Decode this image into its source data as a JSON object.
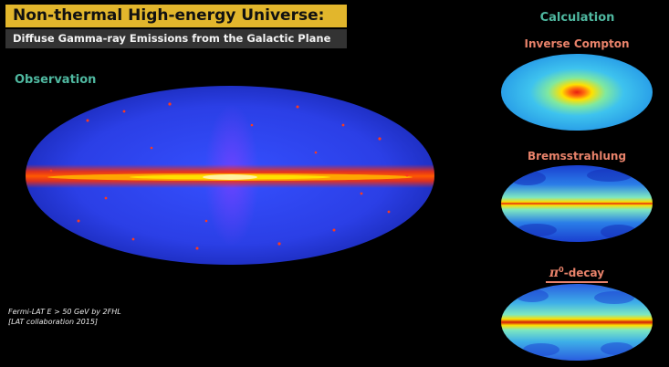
{
  "header": {
    "title": "Non-thermal High-energy Universe:",
    "subtitle": "Diffuse Gamma-ray Emissions from the Galactic Plane"
  },
  "observation": {
    "label": "Observation",
    "credit_line1": "Fermi-LAT E > 50 GeV by 2FHL",
    "credit_line2": "[LAT collaboration 2015]"
  },
  "calculation": {
    "label": "Calculation",
    "inverse_compton": "Inverse Compton",
    "bremsstrahlung": "Bremsstrahlung",
    "pi0_symbol": "π",
    "pi0_sup": "0",
    "pi0_suffix": "-decay"
  },
  "colors": {
    "title_bg": "#e2b62c",
    "subtitle_bg": "#333333",
    "teal_label": "#4fb8a0",
    "salmon_label": "#e8826a",
    "map_blue": "#2a3fe8",
    "map_red": "#ff2a00",
    "map_yellow": "#ffe000"
  }
}
